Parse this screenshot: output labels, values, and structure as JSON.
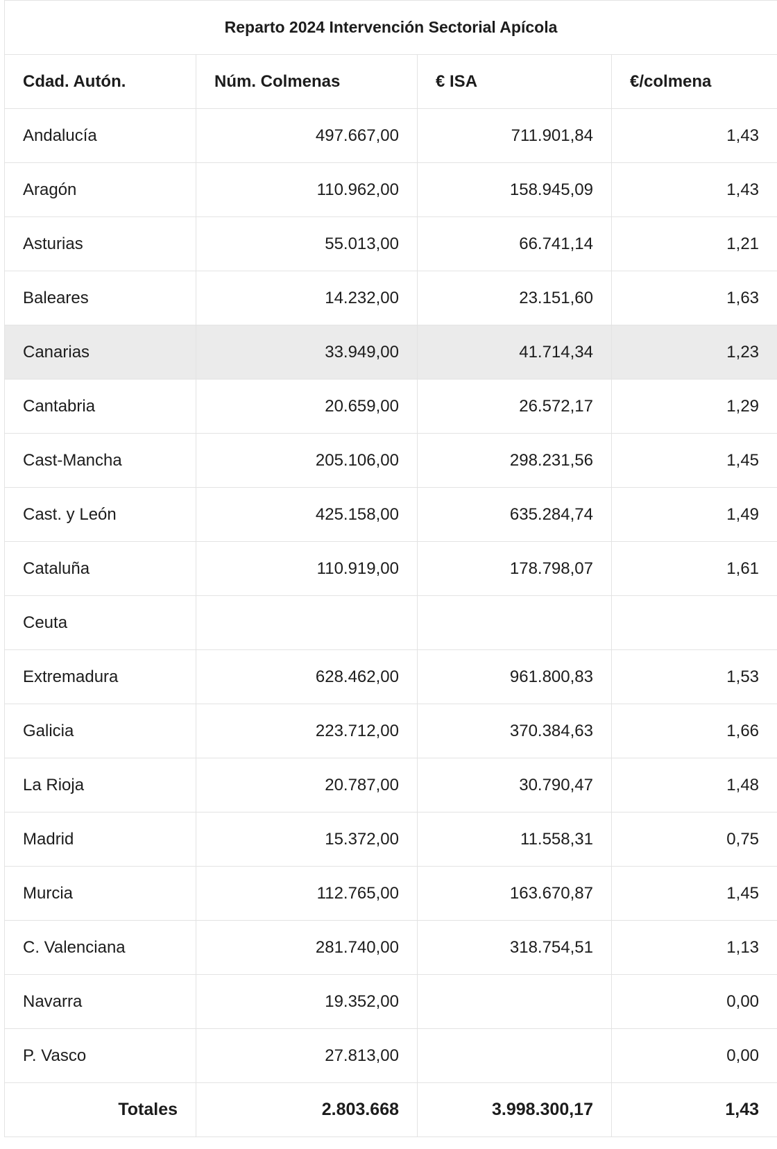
{
  "title": "Reparto 2024 Intervención Sectorial Apícola",
  "table": {
    "header": [
      "Cdad. Autón.",
      "Núm. Colmenas",
      "€ ISA",
      "€/colmena"
    ],
    "rows": [
      [
        "Andalucía",
        "497.667,00",
        "711.901,84",
        "1,43"
      ],
      [
        "Aragón",
        "110.962,00",
        "158.945,09",
        "1,43"
      ],
      [
        "Asturias",
        "55.013,00",
        "66.741,14",
        "1,21"
      ],
      [
        "Baleares",
        "14.232,00",
        "23.151,60",
        "1,63"
      ],
      [
        "Canarias",
        "33.949,00",
        "41.714,34",
        "1,23"
      ],
      [
        "Cantabria",
        "20.659,00",
        "26.572,17",
        "1,29"
      ],
      [
        "Cast-Mancha",
        "205.106,00",
        "298.231,56",
        "1,45"
      ],
      [
        "Cast. y León",
        "425.158,00",
        "635.284,74",
        "1,49"
      ],
      [
        "Cataluña",
        "110.919,00",
        "178.798,07",
        "1,61"
      ],
      [
        "Ceuta",
        null,
        null,
        null
      ],
      [
        "Extremadura",
        "628.462,00",
        "961.800,83",
        "1,53"
      ],
      [
        "Galicia",
        "223.712,00",
        "370.384,63",
        "1,66"
      ],
      [
        "La Rioja",
        "20.787,00",
        "30.790,47",
        "1,48"
      ],
      [
        "Madrid",
        "15.372,00",
        "11.558,31",
        "0,75"
      ],
      [
        "Murcia",
        "112.765,00",
        "163.670,87",
        "1,45"
      ],
      [
        "C. Valenciana",
        "281.740,00",
        "318.754,51",
        "1,13"
      ],
      [
        "Navarra",
        "19.352,00",
        null,
        "0,00"
      ],
      [
        "P. Vasco",
        "27.813,00",
        null,
        "0,00"
      ]
    ],
    "totals": [
      "Totales",
      "2.803.668",
      "3.998.300,17",
      "1,43"
    ]
  }
}
